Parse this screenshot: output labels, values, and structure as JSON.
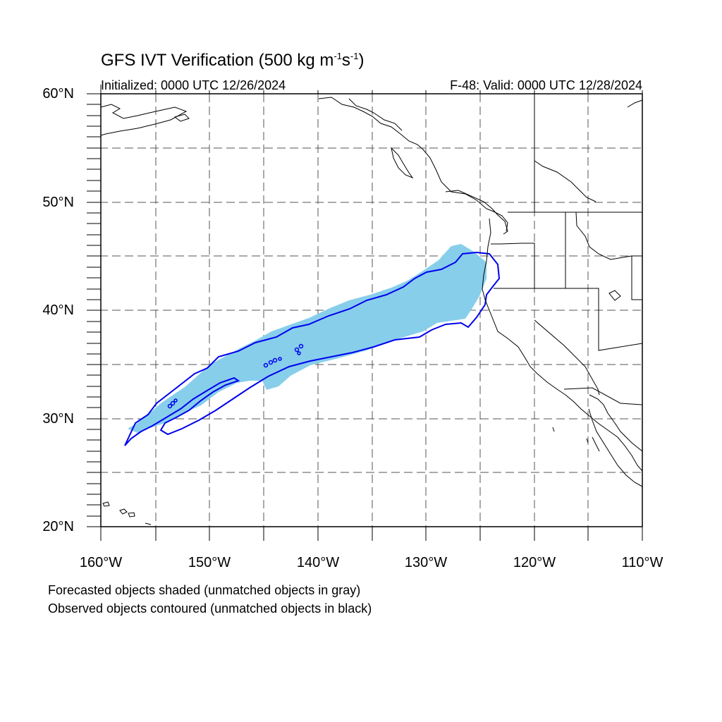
{
  "title_text": "GFS IVT Verification (500 kg m",
  "title_sup1": "-1",
  "title_mid": "s",
  "title_sup2": "-1",
  "title_end": ")",
  "initialized": "Initialized: 0000 UTC 12/26/2024",
  "valid": "F-48: Valid: 0000 UTC 12/28/2024",
  "lat_labels": [
    "60°N",
    "50°N",
    "40°N",
    "30°N",
    "20°N"
  ],
  "lon_labels": [
    "160°W",
    "150°W",
    "140°W",
    "130°W",
    "120°W",
    "110°W"
  ],
  "notes": [
    "Forecasted objects shaded (unmatched objects in gray)",
    "Observed objects contoured (unmatched objects in black)"
  ],
  "map_extent": {
    "lon": [
      -160,
      -110
    ],
    "lat": [
      20,
      60
    ]
  },
  "colors": {
    "forecast_fill": "#87ceeb",
    "observed_contour": "#0000ee",
    "coast": "#000000",
    "grid": "#555555"
  }
}
